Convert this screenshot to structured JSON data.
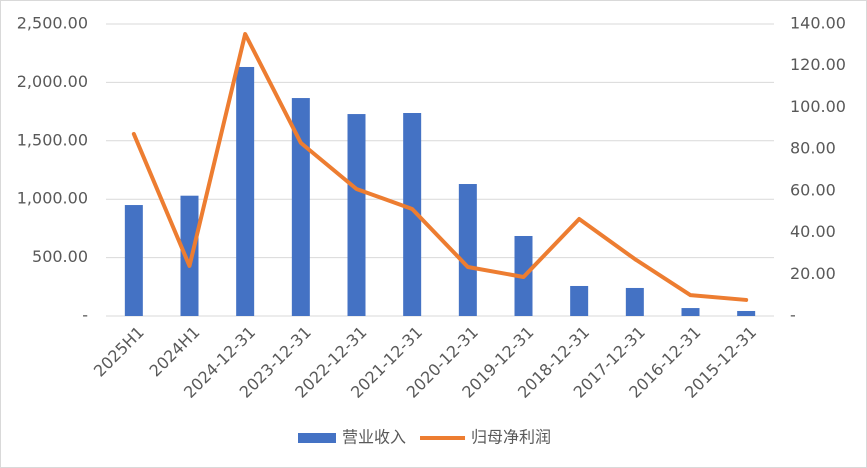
{
  "chart_data": {
    "type": "bar",
    "categories": [
      "2025H1",
      "2024H1",
      "2024-12-31",
      "2023-12-31",
      "2022-12-31",
      "2021-12-31",
      "2020-12-31",
      "2019-12-31",
      "2018-12-31",
      "2017-12-31",
      "2016-12-31",
      "2015-12-31"
    ],
    "series": [
      {
        "name": "营业收入",
        "type": "bar",
        "color": "#4472c4",
        "axis": "y",
        "values": [
          950,
          1030,
          2132,
          1866,
          1729,
          1738,
          1130,
          685,
          257,
          240,
          68,
          43
        ]
      },
      {
        "name": "归母净利润",
        "type": "line",
        "color": "#ed7d31",
        "axis": "y2",
        "values": [
          87.3,
          24,
          135.2,
          83,
          60.9,
          51.3,
          23.5,
          18.7,
          46.5,
          27.3,
          10,
          7.7
        ]
      }
    ],
    "ylim": [
      0,
      2500
    ],
    "yticks": [
      {
        "value": 0,
        "label": "-"
      },
      {
        "value": 500,
        "label": "500.00"
      },
      {
        "value": 1000,
        "label": "1,000.00"
      },
      {
        "value": 1500,
        "label": "1,500.00"
      },
      {
        "value": 2000,
        "label": "2,000.00"
      },
      {
        "value": 2500,
        "label": "2,500.00"
      }
    ],
    "y2lim": [
      0,
      140
    ],
    "y2ticks": [
      {
        "value": 0,
        "label": "-"
      },
      {
        "value": 20,
        "label": "20.00"
      },
      {
        "value": 40,
        "label": "40.00"
      },
      {
        "value": 60,
        "label": "60.00"
      },
      {
        "value": 80,
        "label": "80.00"
      },
      {
        "value": 100,
        "label": "100.00"
      },
      {
        "value": 120,
        "label": "120.00"
      },
      {
        "value": 140,
        "label": "140.00"
      }
    ],
    "grid": true,
    "legend": "bottom"
  }
}
